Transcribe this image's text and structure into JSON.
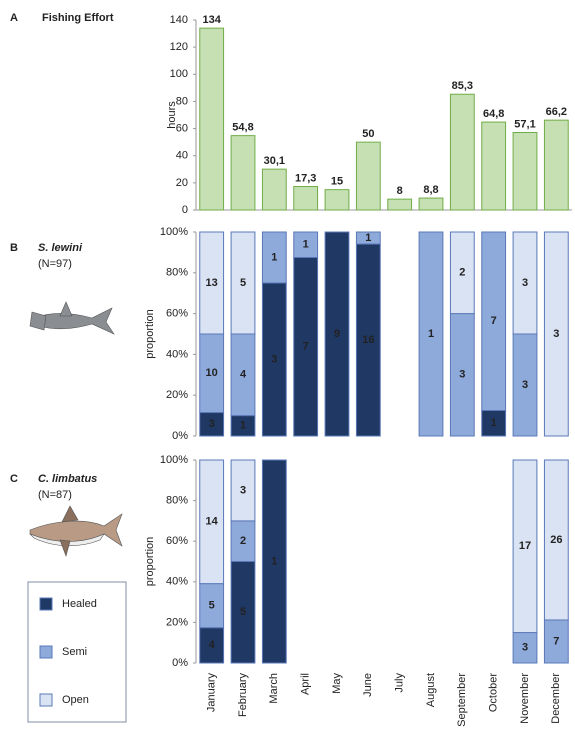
{
  "chart_data": [
    {
      "type": "bar",
      "panel": "A",
      "title": "Fishing Effort",
      "ylabel": "hours",
      "values": [
        134,
        54.8,
        30.1,
        17.3,
        15,
        50,
        8,
        8.8,
        85.3,
        64.8,
        57.1,
        66.2
      ],
      "value_labels": [
        "134",
        "54,8",
        "30,1",
        "17,3",
        "15",
        "50",
        "8",
        "8,8",
        "85,3",
        "64,8",
        "57,1",
        "66,2"
      ],
      "color": "#c6e0b4",
      "edge": "#70ad47",
      "ylim": [
        0,
        140
      ],
      "yticks": [
        0,
        20,
        40,
        60,
        80,
        100,
        120,
        140
      ]
    },
    {
      "type": "stacked_bar",
      "panel": "B",
      "title": "S. lewini",
      "subtitle": "(N=97)",
      "ylabel": "proportion",
      "series": [
        {
          "color": "#203864",
          "values": [
            11.5,
            10,
            75,
            87.5,
            100,
            94.1,
            null,
            null,
            null,
            12.5,
            null,
            null
          ],
          "counts": [
            3,
            1,
            3,
            7,
            9,
            16,
            null,
            null,
            null,
            1,
            null,
            null
          ]
        },
        {
          "color": "#8eaadb",
          "values": [
            38.5,
            40,
            25,
            12.5,
            null,
            5.9,
            null,
            100,
            60,
            87.5,
            50,
            null
          ],
          "counts": [
            10,
            4,
            1,
            1,
            null,
            1,
            null,
            1,
            3,
            7,
            3,
            null
          ]
        },
        {
          "color": "#dae3f3",
          "values": [
            50,
            50,
            null,
            null,
            null,
            null,
            null,
            null,
            40,
            null,
            50,
            100
          ],
          "counts": [
            13,
            5,
            null,
            null,
            null,
            null,
            null,
            null,
            2,
            null,
            3,
            3
          ]
        }
      ],
      "ylim": [
        0,
        100
      ],
      "yticks": [
        {
          "value": 0,
          "label": "0%"
        },
        {
          "value": 20,
          "label": "20%"
        },
        {
          "value": 40,
          "label": "40%"
        },
        {
          "value": 60,
          "label": "60%"
        },
        {
          "value": 80,
          "label": "80%"
        },
        {
          "value": 100,
          "label": "100%"
        }
      ]
    },
    {
      "type": "stacked_bar",
      "panel": "C",
      "title": "C. limbatus",
      "subtitle": "(N=87)",
      "ylabel": "proportion",
      "categories": [
        "January",
        "February",
        "March",
        "April",
        "May",
        "June",
        "July",
        "August",
        "September",
        "October",
        "November",
        "December"
      ],
      "series": [
        {
          "name": "Healed",
          "color": "#203864",
          "values": [
            17.4,
            50,
            100,
            null,
            null,
            null,
            null,
            null,
            null,
            null,
            null,
            null
          ],
          "counts": [
            4,
            5,
            1,
            null,
            null,
            null,
            null,
            null,
            null,
            null,
            null,
            null
          ]
        },
        {
          "name": "Semi",
          "color": "#8eaadb",
          "values": [
            21.7,
            20,
            null,
            null,
            null,
            null,
            null,
            null,
            null,
            null,
            15,
            21.2
          ],
          "counts": [
            5,
            2,
            null,
            null,
            null,
            null,
            null,
            null,
            null,
            null,
            3,
            7
          ]
        },
        {
          "name": "Open",
          "color": "#dae3f3",
          "values": [
            60.9,
            30,
            null,
            null,
            null,
            null,
            null,
            null,
            null,
            null,
            85,
            78.8
          ],
          "counts": [
            14,
            3,
            null,
            null,
            null,
            null,
            null,
            null,
            null,
            null,
            17,
            26
          ]
        }
      ],
      "ylim": [
        0,
        100
      ],
      "yticks": [
        {
          "value": 0,
          "label": "0%"
        },
        {
          "value": 20,
          "label": "20%"
        },
        {
          "value": 40,
          "label": "40%"
        },
        {
          "value": 60,
          "label": "60%"
        },
        {
          "value": 80,
          "label": "80%"
        },
        {
          "value": 100,
          "label": "100%"
        }
      ]
    }
  ]
}
